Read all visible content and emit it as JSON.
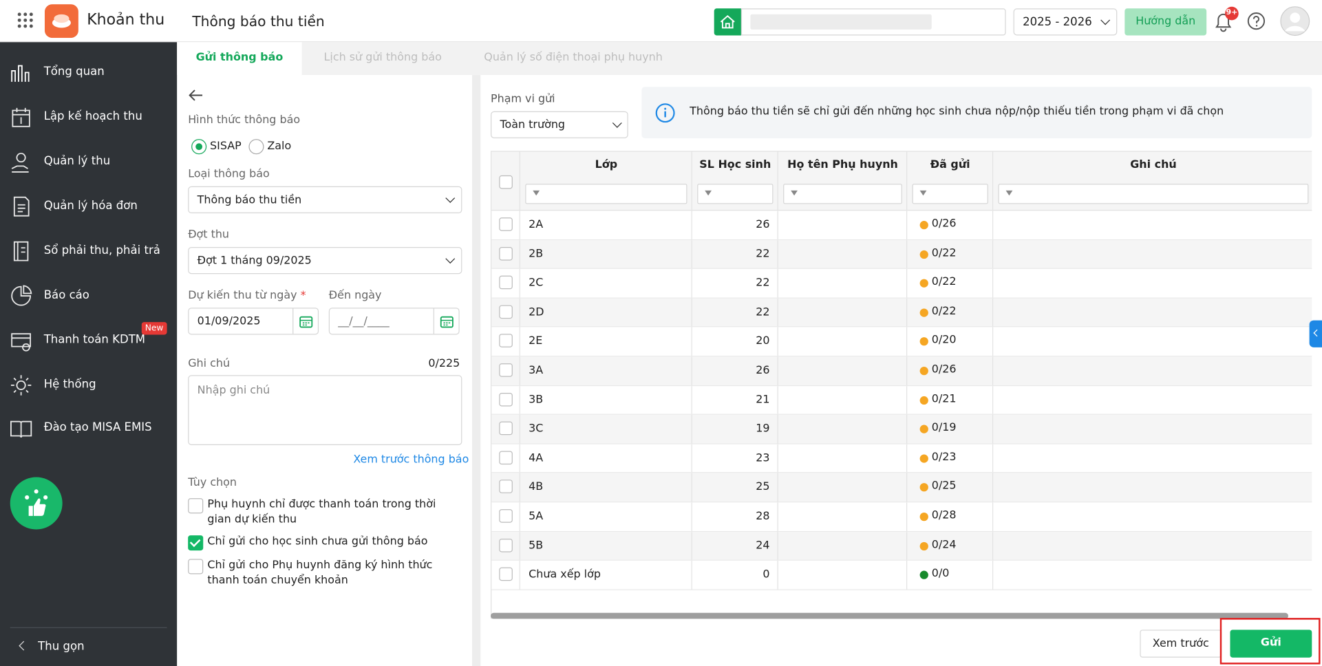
{
  "header": {
    "app_name": "Khoản thu",
    "page_title": "Thông báo thu tiền",
    "school_year": "2025 - 2026",
    "help_button": "Hướng dẫn",
    "notification_badge": "9+"
  },
  "sidebar": {
    "items": [
      {
        "label": "Tổng quan"
      },
      {
        "label": "Lập kế hoạch thu"
      },
      {
        "label": "Quản lý thu"
      },
      {
        "label": "Quản lý hóa đơn"
      },
      {
        "label": "Sổ phải thu, phải trả"
      },
      {
        "label": "Báo cáo"
      },
      {
        "label": "Thanh toán KDTM",
        "badge": "New"
      },
      {
        "label": "Hệ thống"
      },
      {
        "label": "Đào tạo MISA EMIS"
      }
    ],
    "collapse": "Thu gọn"
  },
  "tabs": {
    "items": [
      "Gửi thông báo",
      "Lịch sử gửi thông báo",
      "Quản lý số điện thoại phụ huynh"
    ],
    "active": 0
  },
  "form": {
    "method_label": "Hình thức thông báo",
    "method_options": [
      "SISAP",
      "Zalo"
    ],
    "method_selected": 0,
    "type_label": "Loại thông báo",
    "type_value": "Thông báo thu tiền",
    "period_label": "Đợt thu",
    "period_value": "Đợt 1 tháng 09/2025",
    "from_label": "Dự kiến thu từ ngày",
    "required_mark": "*",
    "from_value": "01/09/2025",
    "to_label": "Đến ngày",
    "to_placeholder": "__/__/____",
    "note_label": "Ghi chú",
    "note_counter": "0/225",
    "note_placeholder": "Nhập ghi chú",
    "preview_link": "Xem trước thông báo",
    "options_label": "Tùy chọn",
    "options": [
      {
        "label": "Phụ huynh chỉ được thanh toán trong thời gian dự kiến thu",
        "checked": false
      },
      {
        "label": "Chỉ gửi cho học sinh chưa gửi thông báo",
        "checked": true
      },
      {
        "label": "Chỉ gửi cho Phụ huynh đăng ký hình thức thanh toán chuyển khoản",
        "checked": false
      }
    ]
  },
  "scope": {
    "label": "Phạm vi gửi",
    "value": "Toàn trường",
    "info": "Thông báo thu tiền sẽ chỉ gửi đến những học sinh chưa nộp/nộp thiếu tiền trong phạm vi đã chọn"
  },
  "table": {
    "columns": [
      "Lớp",
      "SL Học sinh",
      "Họ tên Phụ huynh",
      "Đã gửi",
      "Ghi chú"
    ],
    "rows": [
      {
        "class": "2A",
        "students": 26,
        "sent": "0/26",
        "color": "#f5a623"
      },
      {
        "class": "2B",
        "students": 22,
        "sent": "0/22",
        "color": "#f5a623"
      },
      {
        "class": "2C",
        "students": 22,
        "sent": "0/22",
        "color": "#f5a623"
      },
      {
        "class": "2D",
        "students": 22,
        "sent": "0/22",
        "color": "#f5a623"
      },
      {
        "class": "2E",
        "students": 20,
        "sent": "0/20",
        "color": "#f5a623"
      },
      {
        "class": "3A",
        "students": 26,
        "sent": "0/26",
        "color": "#f5a623"
      },
      {
        "class": "3B",
        "students": 21,
        "sent": "0/21",
        "color": "#f5a623"
      },
      {
        "class": "3C",
        "students": 19,
        "sent": "0/19",
        "color": "#f5a623"
      },
      {
        "class": "4A",
        "students": 23,
        "sent": "0/23",
        "color": "#f5a623"
      },
      {
        "class": "4B",
        "students": 25,
        "sent": "0/25",
        "color": "#f5a623"
      },
      {
        "class": "5A",
        "students": 28,
        "sent": "0/28",
        "color": "#f5a623"
      },
      {
        "class": "5B",
        "students": 24,
        "sent": "0/24",
        "color": "#f5a623"
      },
      {
        "class": "Chưa xếp lớp",
        "students": 0,
        "sent": "0/0",
        "color": "#178a2c"
      }
    ]
  },
  "footer": {
    "preview_button": "Xem trước",
    "send_button": "Gửi"
  }
}
